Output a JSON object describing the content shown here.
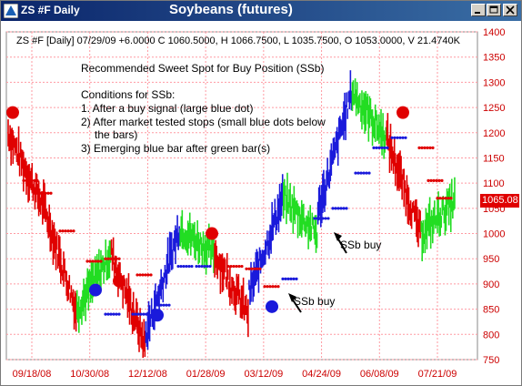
{
  "window": {
    "title": "ZS #F Daily",
    "chart_title": "Soybeans (futures)"
  },
  "controls": {
    "minimize_icon": "minimize-icon",
    "maximize_icon": "maximize-icon",
    "close_icon": "close-icon"
  },
  "info_line": "ZS #F [Daily] 07/29/09 +6.0000 C 1060.5000, H 1066.7500, L 1035.7500, O 1053.0000, V 21.4740K",
  "notes": {
    "headline": "Recommended Sweet Spot for Buy Position (SSb)",
    "conditions_title": "Conditions for SSb:",
    "c1": "1. After a buy signal (large blue dot)",
    "c2a": "2) After market tested stops (small blue dots below",
    "c2b": "the bars)",
    "c3": "3) Emerging blue bar after green bar(s)"
  },
  "annotations": {
    "ssb1": "SSb buy",
    "ssb2": "SSb buy"
  },
  "last_price_tag": "1065.08",
  "colors": {
    "down": "#e00000",
    "up": "#1a1adb",
    "green": "#22dd22",
    "grid": "#ff9aa2",
    "axis_text": "#cc0000",
    "title_bar": "#0a246a"
  },
  "chart_data": {
    "type": "bar",
    "title": "Soybeans (futures)",
    "y_ticks": [
      750,
      800,
      850,
      900,
      950,
      1000,
      1050,
      1100,
      1150,
      1200,
      1250,
      1300,
      1350,
      1400
    ],
    "ylim": [
      750,
      1400
    ],
    "x_ticks": [
      "09/18/08",
      "10/30/08",
      "12/12/08",
      "01/28/09",
      "03/12/09",
      "04/24/09",
      "06/08/09",
      "07/21/09"
    ],
    "segments": [
      {
        "color": "red",
        "start": 1200,
        "end": 1060
      },
      {
        "color": "red",
        "start": 1060,
        "end": 850
      },
      {
        "color": "green",
        "start": 850,
        "end": 960
      },
      {
        "color": "red",
        "start": 960,
        "end": 780
      },
      {
        "color": "blue",
        "start": 800,
        "end": 1010
      },
      {
        "color": "green",
        "start": 1010,
        "end": 960
      },
      {
        "color": "red",
        "start": 960,
        "end": 840
      },
      {
        "color": "blue",
        "start": 880,
        "end": 1070
      },
      {
        "color": "green",
        "start": 1070,
        "end": 1000
      },
      {
        "color": "blue",
        "start": 1040,
        "end": 1280
      },
      {
        "color": "green",
        "start": 1280,
        "end": 1190
      },
      {
        "color": "red",
        "start": 1190,
        "end": 1000
      },
      {
        "color": "green",
        "start": 1000,
        "end": 1065
      }
    ],
    "buy_signals": [
      {
        "date_index": 3,
        "price": 890
      },
      {
        "date_index": 6,
        "price": 835
      },
      {
        "date_index": 12,
        "price": 855
      }
    ],
    "sell_signals": [
      {
        "date_index": 0,
        "price": 1240
      },
      {
        "date_index": 5,
        "price": 905
      },
      {
        "date_index": 9,
        "price": 1000
      },
      {
        "date_index": 16,
        "price": 1240
      }
    ],
    "last_close": 1060.5
  }
}
